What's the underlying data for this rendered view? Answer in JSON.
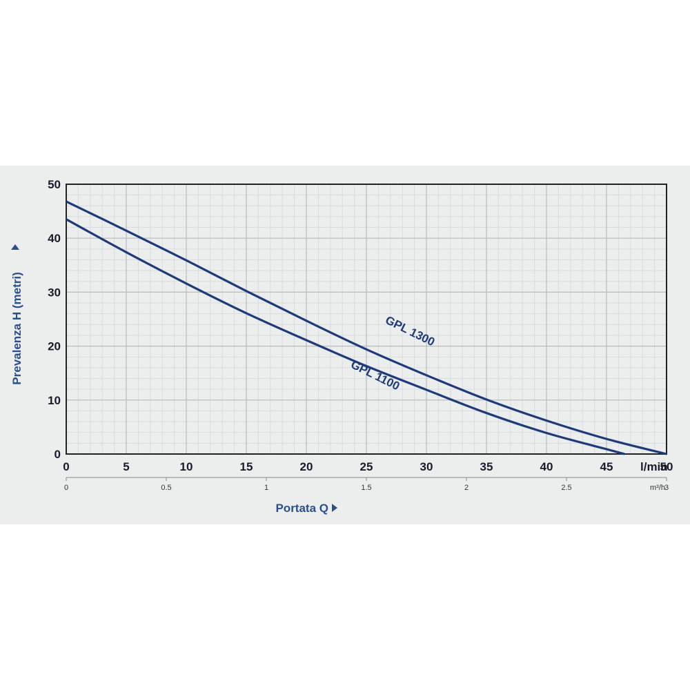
{
  "chart_data": {
    "type": "line",
    "title": "",
    "xlabel": "Portata Q",
    "ylabel": "Prevalenza H (metri)",
    "xlim": [
      0,
      50
    ],
    "ylim": [
      0,
      50
    ],
    "grid": true,
    "x_ticks": [
      "0",
      "5",
      "10",
      "15",
      "20",
      "25",
      "30",
      "35",
      "40",
      "45",
      "50"
    ],
    "x_unit": "l/min",
    "y_ticks": [
      "0",
      "10",
      "20",
      "30",
      "40",
      "50"
    ],
    "secondary_x_ticks": [
      "0",
      "0.5",
      "1",
      "1.5",
      "2",
      "2.5",
      "3"
    ],
    "secondary_x_unit": "m³/h",
    "series": [
      {
        "name": "GPL 1300",
        "color": "#1f3a7a",
        "x": [
          0,
          5,
          10,
          15,
          20,
          25,
          30,
          35,
          40,
          45,
          50
        ],
        "y": [
          46.8,
          41.4,
          35.9,
          30.2,
          24.7,
          19.4,
          14.6,
          10.1,
          6.2,
          2.8,
          0
        ]
      },
      {
        "name": "GPL 1100",
        "color": "#1f3a7a",
        "x": [
          0,
          5,
          10,
          15,
          20,
          25,
          30,
          35,
          40,
          45,
          46.5
        ],
        "y": [
          43.5,
          37.4,
          31.6,
          26.1,
          21.1,
          16.3,
          11.9,
          7.6,
          3.9,
          0.9,
          0
        ]
      }
    ]
  }
}
